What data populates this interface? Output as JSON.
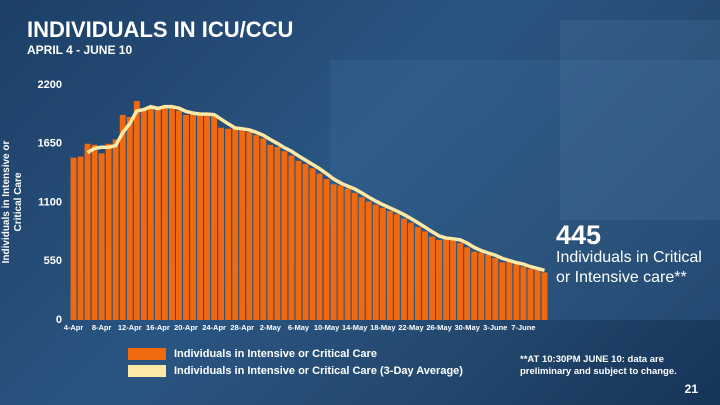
{
  "chart_data": {
    "type": "bar",
    "title": "INDIVIDUALS IN ICU/CCU",
    "subtitle": "APRIL 4 - JUNE 10",
    "y_label": "Individuals in Intensive or Critical Care",
    "annotation": "Individuals in Critical or Intensive care**",
    "footnote": "**AT 10:30PM JUNE 10: data are preliminary and subject to change.",
    "slide_number": 21,
    "categories": [
      "4-Apr",
      null,
      null,
      null,
      "8-Apr",
      null,
      null,
      null,
      "12-Apr",
      null,
      null,
      null,
      "16-Apr",
      null,
      null,
      null,
      "20-Apr",
      null,
      null,
      null,
      "24-Apr",
      null,
      null,
      null,
      "28-Apr",
      null,
      null,
      null,
      "2-May",
      null,
      null,
      null,
      "6-May",
      null,
      null,
      null,
      "10-May",
      null,
      null,
      null,
      "14-May",
      null,
      null,
      null,
      "18-May",
      null,
      null,
      null,
      "22-May",
      null,
      null,
      null,
      "26-May",
      null,
      null,
      null,
      "30-May",
      null,
      null,
      null,
      "3-June",
      null,
      null,
      null,
      "7-June",
      null,
      null,
      null
    ],
    "series": [
      {
        "name": "Individuals in Intensive or Critical Care",
        "type": "bar",
        "color": "#f0690f",
        "values": [
          1520,
          1530,
          1650,
          1640,
          1560,
          1650,
          1690,
          1920,
          1900,
          2050,
          1960,
          1980,
          2000,
          2010,
          1980,
          1960,
          1920,
          1930,
          1930,
          1920,
          1920,
          1800,
          1790,
          1800,
          1780,
          1760,
          1730,
          1700,
          1640,
          1620,
          1580,
          1540,
          1490,
          1460,
          1420,
          1370,
          1320,
          1270,
          1260,
          1230,
          1190,
          1150,
          1110,
          1080,
          1050,
          1020,
          990,
          950,
          910,
          870,
          830,
          780,
          750,
          770,
          760,
          720,
          680,
          640,
          630,
          610,
          580,
          540,
          550,
          520,
          500,
          480,
          470,
          445
        ]
      },
      {
        "name": "Individuals in Intensive or Critical Care (3-Day Average)",
        "type": "line",
        "color": "#fde9a6",
        "values": [
          null,
          null,
          1567,
          1607,
          1617,
          1617,
          1633,
          1753,
          1837,
          1957,
          1970,
          1997,
          1980,
          1997,
          1997,
          1983,
          1953,
          1937,
          1927,
          1927,
          1923,
          1880,
          1837,
          1797,
          1790,
          1780,
          1757,
          1730,
          1690,
          1653,
          1613,
          1580,
          1537,
          1497,
          1457,
          1417,
          1370,
          1320,
          1283,
          1253,
          1227,
          1190,
          1150,
          1113,
          1080,
          1050,
          1020,
          987,
          950,
          910,
          870,
          827,
          787,
          767,
          760,
          750,
          720,
          680,
          650,
          627,
          607,
          577,
          557,
          537,
          523,
          500,
          483,
          465
        ]
      }
    ],
    "ylim": [
      0,
      2200
    ],
    "yticks": [
      0,
      550,
      1100,
      1650,
      2200
    ],
    "grid": false
  }
}
